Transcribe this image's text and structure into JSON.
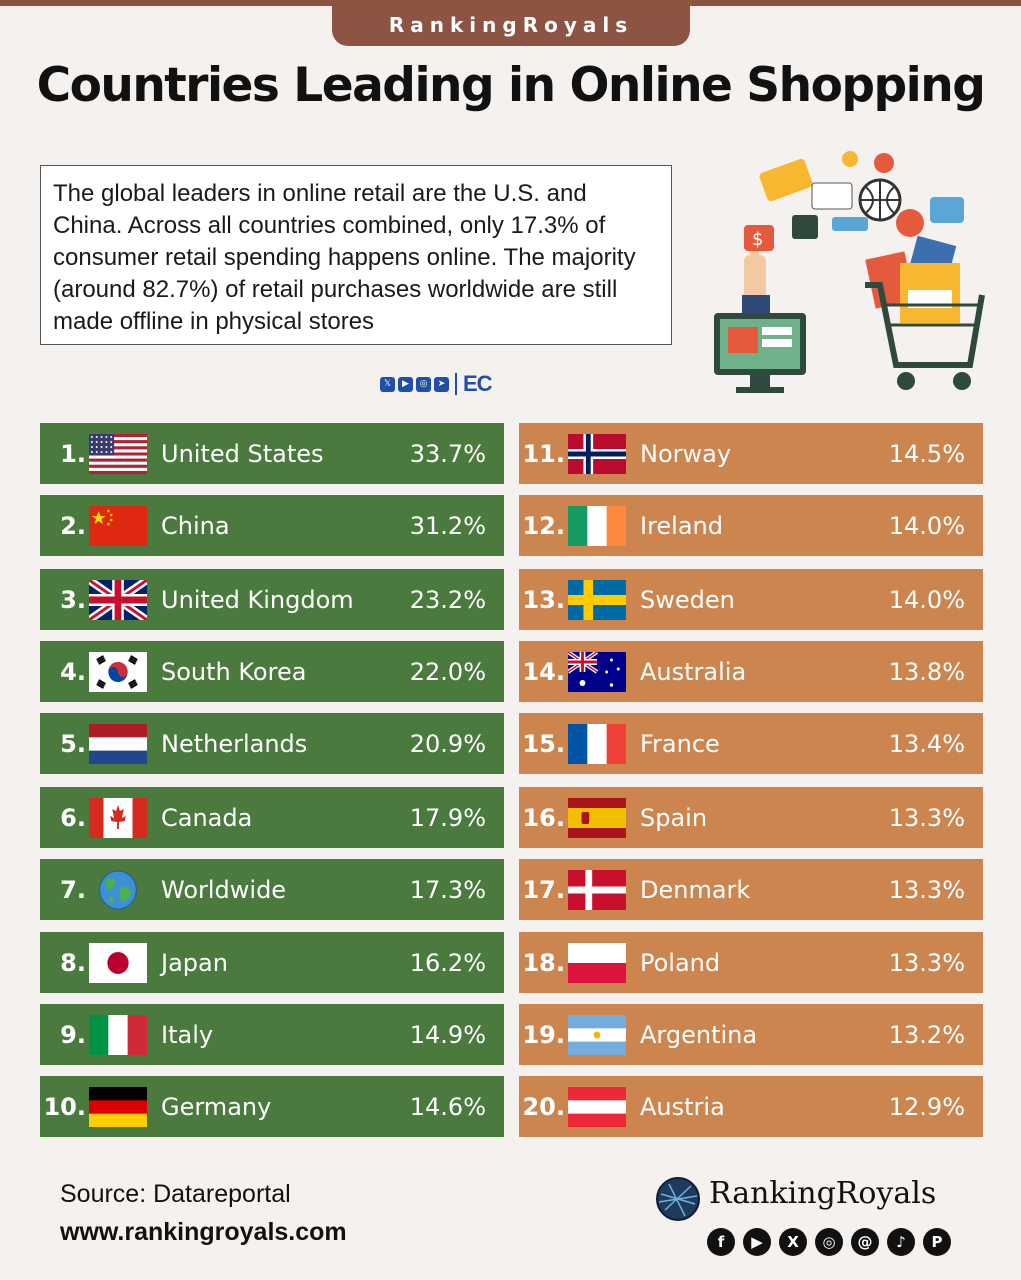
{
  "brand_tab": "RankingRoyals",
  "title": "Countries Leading in Online Shopping",
  "intro_text": "The global leaders in online retail are the U.S. and China. Across all countries combined, only 17.3% of consumer retail spending happens online. The majority (around 82.7%) of retail purchases worldwide are still made offline in physical stores",
  "mini_logo": "EC",
  "chart_data": {
    "type": "table",
    "columns": [
      "rank",
      "country",
      "online_share_percent"
    ],
    "rows": [
      {
        "rank": "1.",
        "country": "United States",
        "value": "33.7%",
        "flag": "us-flag-icon"
      },
      {
        "rank": "2.",
        "country": "China",
        "value": "31.2%",
        "flag": "china-flag-icon"
      },
      {
        "rank": "3.",
        "country": "United Kingdom",
        "value": "23.2%",
        "flag": "uk-flag-icon"
      },
      {
        "rank": "4.",
        "country": "South Korea",
        "value": "22.0%",
        "flag": "south-korea-flag-icon"
      },
      {
        "rank": "5.",
        "country": "Netherlands",
        "value": "20.9%",
        "flag": "netherlands-flag-icon"
      },
      {
        "rank": "6.",
        "country": "Canada",
        "value": "17.9%",
        "flag": "canada-flag-icon"
      },
      {
        "rank": "7.",
        "country": "Worldwide",
        "value": "17.3%",
        "flag": "globe-icon"
      },
      {
        "rank": "8.",
        "country": "Japan",
        "value": "16.2%",
        "flag": "japan-flag-icon"
      },
      {
        "rank": "9.",
        "country": "Italy",
        "value": "14.9%",
        "flag": "italy-flag-icon"
      },
      {
        "rank": "10.",
        "country": "Germany",
        "value": "14.6%",
        "flag": "germany-flag-icon"
      },
      {
        "rank": "11.",
        "country": "Norway",
        "value": "14.5%",
        "flag": "norway-flag-icon"
      },
      {
        "rank": "12.",
        "country": "Ireland",
        "value": "14.0%",
        "flag": "ireland-flag-icon"
      },
      {
        "rank": "13.",
        "country": "Sweden",
        "value": "14.0%",
        "flag": "sweden-flag-icon"
      },
      {
        "rank": "14.",
        "country": "Australia",
        "value": "13.8%",
        "flag": "australia-flag-icon"
      },
      {
        "rank": "15.",
        "country": "France",
        "value": "13.4%",
        "flag": "france-flag-icon"
      },
      {
        "rank": "16.",
        "country": "Spain",
        "value": "13.3%",
        "flag": "spain-flag-icon"
      },
      {
        "rank": "17.",
        "country": "Denmark",
        "value": "13.3%",
        "flag": "denmark-flag-icon"
      },
      {
        "rank": "18.",
        "country": "Poland",
        "value": "13.3%",
        "flag": "poland-flag-icon"
      },
      {
        "rank": "19.",
        "country": "Argentina",
        "value": "13.2%",
        "flag": "argentina-flag-icon"
      },
      {
        "rank": "20.",
        "country": "Austria",
        "value": "12.9%",
        "flag": "austria-flag-icon"
      }
    ],
    "colors": {
      "left_rows": "#4b7a3f",
      "right_rows": "#cd8550"
    }
  },
  "footer": {
    "source": "Source: Datareportal",
    "url": "www.rankingroyals.com",
    "logo_text": "RankingRoyals",
    "socials": [
      "facebook-icon",
      "youtube-icon",
      "x-icon",
      "instagram-icon",
      "threads-icon",
      "tiktok-icon",
      "pinterest-icon"
    ]
  }
}
